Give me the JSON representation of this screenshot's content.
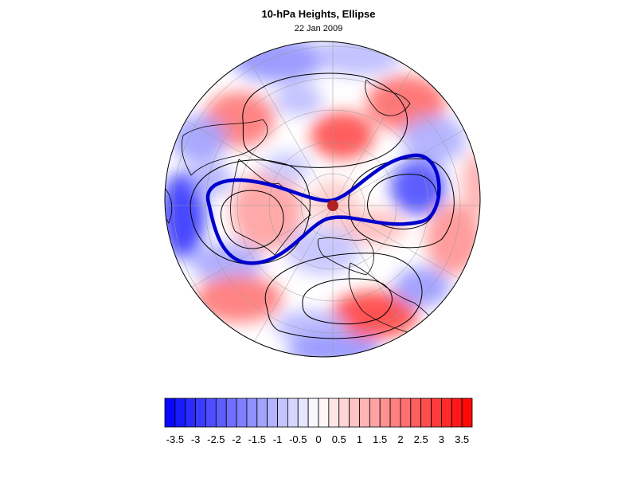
{
  "title": "10-hPa Heights, Ellipse",
  "subtitle": "22 Jan 2009",
  "colorbar": {
    "min": -3.75,
    "max": 3.75,
    "step": 0.25,
    "tick_labels": [
      "-3.5",
      "-3",
      "-2.5",
      "-2",
      "-1.5",
      "-1",
      "-0.5",
      "0",
      "0.5",
      "1",
      "1.5",
      "2",
      "2.5",
      "3",
      "3.5"
    ],
    "tick_values": [
      -3.5,
      -3,
      -2.5,
      -2,
      -1.5,
      -1,
      -0.5,
      0,
      0.5,
      1,
      1.5,
      2,
      2.5,
      3,
      3.5
    ],
    "colors": {
      "negative_end": "#0000ff",
      "positive_end": "#ff0000",
      "neutral": "#ffffff"
    }
  },
  "map": {
    "projection": "north polar stereographic",
    "features": [
      "anomaly shading",
      "height contours",
      "fitted ellipse",
      "pole marker",
      "coastlines",
      "graticule"
    ],
    "colors": {
      "ellipse": "#0000cc",
      "contour": "#000000",
      "coast": "#000000",
      "grid": "#999999",
      "pole_marker": "#b22222"
    }
  }
}
